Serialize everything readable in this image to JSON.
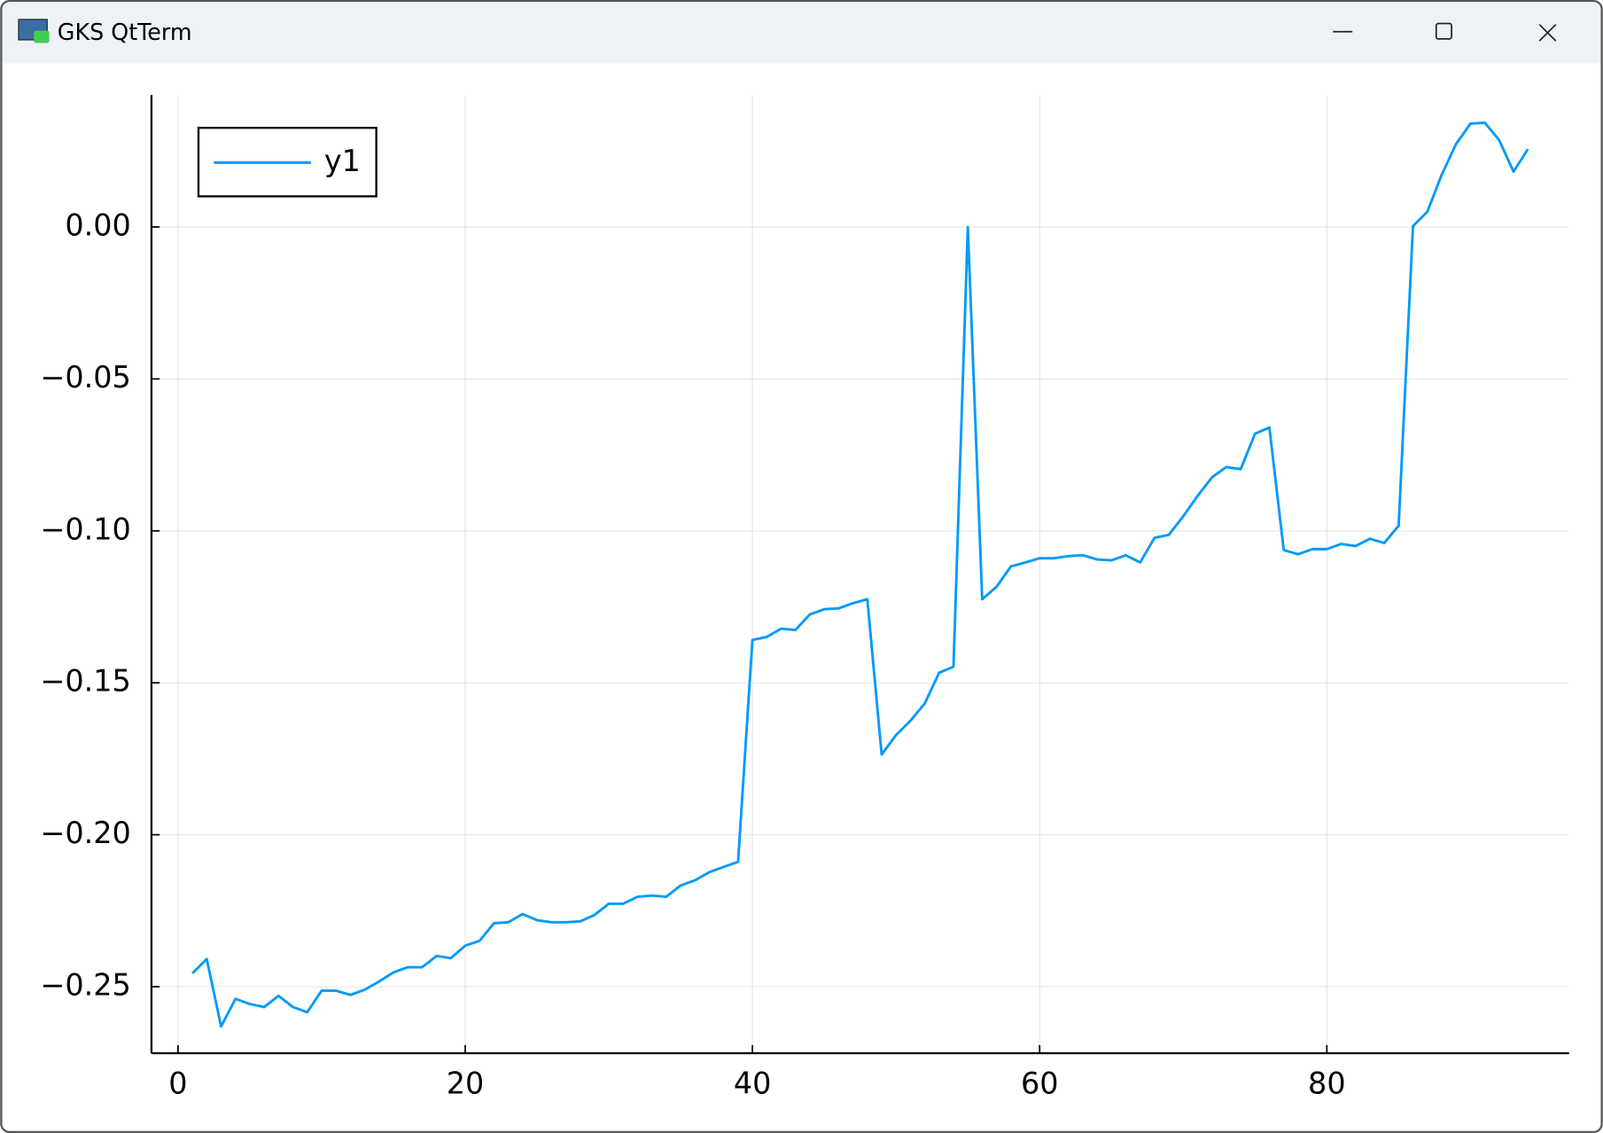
{
  "window": {
    "title": "GKS QtTerm"
  },
  "chart_data": {
    "type": "line",
    "x": [
      1,
      2,
      3,
      4,
      5,
      6,
      7,
      8,
      9,
      10,
      11,
      12,
      13,
      14,
      15,
      16,
      17,
      18,
      19,
      20,
      21,
      22,
      23,
      24,
      25,
      26,
      27,
      28,
      29,
      30,
      31,
      32,
      33,
      34,
      35,
      36,
      37,
      38,
      39,
      40,
      41,
      42,
      43,
      44,
      45,
      46,
      47,
      48,
      49,
      50,
      51,
      52,
      53,
      54,
      55,
      56,
      57,
      58,
      59,
      60,
      61,
      62,
      63,
      64,
      65,
      66,
      67,
      68,
      69,
      70,
      71,
      72,
      73,
      74,
      75,
      76,
      77,
      78,
      79,
      80,
      81,
      82,
      83,
      84,
      85,
      86,
      87,
      88,
      89,
      90,
      91,
      92,
      93,
      94
    ],
    "series": [
      {
        "name": "y1",
        "color": "#009af9",
        "values": [
          -0.2456,
          -0.2409,
          -0.2631,
          -0.254,
          -0.2557,
          -0.2567,
          -0.253,
          -0.2567,
          -0.2584,
          -0.2513,
          -0.2513,
          -0.2527,
          -0.251,
          -0.2483,
          -0.2453,
          -0.2436,
          -0.2436,
          -0.2399,
          -0.2406,
          -0.2365,
          -0.2349,
          -0.2291,
          -0.2288,
          -0.2261,
          -0.2281,
          -0.2288,
          -0.2288,
          -0.2285,
          -0.2264,
          -0.2227,
          -0.2227,
          -0.2204,
          -0.22,
          -0.2204,
          -0.2167,
          -0.215,
          -0.2123,
          -0.2106,
          -0.2089,
          -0.1359,
          -0.1349,
          -0.1322,
          -0.1326,
          -0.1275,
          -0.1258,
          -0.1255,
          -0.1238,
          -0.1225,
          -0.1736,
          -0.1672,
          -0.1625,
          -0.1568,
          -0.1467,
          -0.1447,
          0.0,
          -0.1225,
          -0.1184,
          -0.1117,
          -0.1104,
          -0.109,
          -0.109,
          -0.1083,
          -0.108,
          -0.1094,
          -0.1097,
          -0.108,
          -0.1104,
          -0.1023,
          -0.1013,
          -0.0952,
          -0.0885,
          -0.0824,
          -0.079,
          -0.0797,
          -0.068,
          -0.066,
          -0.1063,
          -0.1077,
          -0.106,
          -0.106,
          -0.1043,
          -0.105,
          -0.1026,
          -0.104,
          -0.0983,
          0.0003,
          0.005,
          0.0172,
          0.0273,
          0.034,
          0.0343,
          0.0286,
          0.0182,
          0.0256
        ]
      }
    ],
    "xlim": [
      -1.85,
      96.87
    ],
    "xticks": [
      0,
      20,
      40,
      60,
      80
    ],
    "ylim": [
      -0.2719,
      0.0434
    ],
    "yticks": [
      {
        "value": 0,
        "label": "0.00"
      },
      {
        "value": -0.05,
        "label": "−0.05"
      },
      {
        "value": -0.1,
        "label": "−0.10"
      },
      {
        "value": -0.15,
        "label": "−0.15"
      },
      {
        "value": -0.2,
        "label": "−0.20"
      },
      {
        "value": -0.25,
        "label": "−0.25"
      }
    ],
    "grid": true,
    "legend": "top-left"
  }
}
